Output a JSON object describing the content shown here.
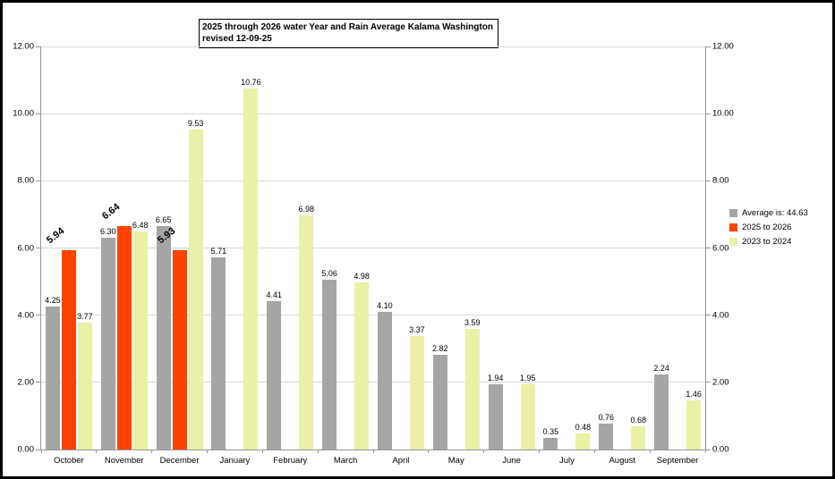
{
  "title": {
    "line1": "2025 through 2026 water Year and Rain Average Kalama Washington",
    "line2": "revised 12-09-25"
  },
  "chart_data": {
    "type": "bar",
    "title": "2025 through 2026 water Year and Rain Average Kalama Washington revised 12-09-25",
    "categories": [
      "October",
      "November",
      "December",
      "January",
      "February",
      "March",
      "April",
      "May",
      "June",
      "July",
      "August",
      "September"
    ],
    "series": [
      {
        "key": "average",
        "name": "Average is: 44.63",
        "color": "#A5A5A5",
        "label_style": "plain",
        "values": [
          4.25,
          6.3,
          6.65,
          5.71,
          4.41,
          5.06,
          4.1,
          2.82,
          1.94,
          0.35,
          0.76,
          2.24
        ]
      },
      {
        "key": "2025-to-2026",
        "name": "2025 to 2026",
        "color": "#FF4300",
        "label_style": "bold-rotated",
        "values": [
          5.94,
          6.64,
          5.93,
          null,
          null,
          null,
          null,
          null,
          null,
          null,
          null,
          null
        ]
      },
      {
        "key": "2023-to-2024",
        "name": "2023 to 2024",
        "color": "#EAF0A6",
        "label_style": "plain",
        "values": [
          3.77,
          6.48,
          9.53,
          10.76,
          6.98,
          4.98,
          3.37,
          3.59,
          1.95,
          0.48,
          0.68,
          1.46
        ]
      }
    ],
    "xlabel": "",
    "ylabel": "",
    "ylim": [
      0,
      12
    ],
    "ytick_step": 2,
    "ytick_labels": [
      "0.00",
      "2.00",
      "4.00",
      "6.00",
      "8.00",
      "10.00",
      "12.00"
    ],
    "y_axis_sides": [
      "left",
      "right"
    ],
    "grid": true,
    "value_labels": true,
    "value_label_format": "0.00",
    "legend_position": "right"
  },
  "colors": {
    "background": "#FFFFFF",
    "frame_border": "#000000",
    "gridline": "#D9D9D9",
    "axis": "#969696",
    "series_average": "#A5A5A5",
    "series_2025_2026": "#FF4300",
    "series_2023_2024": "#EAF0A6"
  }
}
